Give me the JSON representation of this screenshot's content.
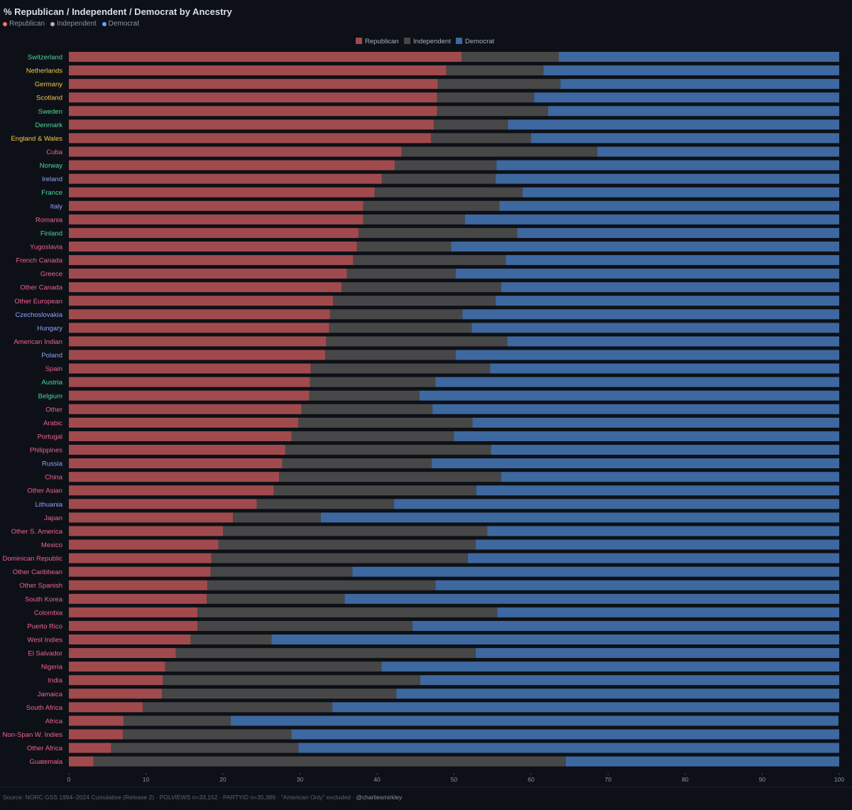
{
  "title": "% Republican / Independent / Democrat by Ancestry",
  "top_legend": [
    {
      "label": "Republican",
      "color": "#ff6b6b"
    },
    {
      "label": "Independent",
      "color": "#b0b0b0"
    },
    {
      "label": "Democrat",
      "color": "#5aa5ff"
    }
  ],
  "footer": {
    "text": "Source: NORC GSS 1994–2024 Cumulative (Release 2) · POLVIEWS n=33,152 · PARTYID n=35,386 · \"American Only\" excluded · ",
    "handle": "@charliesmirkley"
  },
  "colors": {
    "republican": "#a14a4d",
    "independent": "#474747",
    "democrat": "#3e68a0",
    "label_green": "#4fd69a",
    "label_yellow": "#f2c94c",
    "label_pink": "#f06292",
    "label_blue": "#8fa0ff"
  },
  "chart_data": {
    "type": "bar",
    "orientation": "horizontal",
    "stacked": true,
    "xlim": [
      0,
      100
    ],
    "xticks": [
      0,
      10,
      20,
      30,
      40,
      50,
      60,
      70,
      80,
      90,
      100
    ],
    "legend": [
      "Republican",
      "Independent",
      "Democrat"
    ],
    "legend_position": "top-center",
    "grid": false,
    "categories": [
      "Switzerland",
      "Netherlands",
      "Germany",
      "Scotland",
      "Sweden",
      "Denmark",
      "England & Wales",
      "Cuba",
      "Norway",
      "Ireland",
      "France",
      "Italy",
      "Romania",
      "Finland",
      "Yugoslavia",
      "French Canada",
      "Greece",
      "Other Canada",
      "Other European",
      "Czechoslovakia",
      "Hungary",
      "American Indian",
      "Poland",
      "Spain",
      "Austria",
      "Belgium",
      "Other",
      "Arabic",
      "Portugal",
      "Philippines",
      "Russia",
      "China",
      "Other Asian",
      "Lithuania",
      "Japan",
      "Other S. America",
      "Mexico",
      "Dominican Republic",
      "Other Caribbean",
      "Other Spanish",
      "South Korea",
      "Colombia",
      "Puerto Rico",
      "West Indies",
      "El Salvador",
      "Nigeria",
      "India",
      "Jamaica",
      "South Africa",
      "Africa",
      "Non-Span W. Indies",
      "Other Africa",
      "Guatemala"
    ],
    "label_colors": [
      "green",
      "yellow",
      "yellow",
      "yellow",
      "green",
      "green",
      "yellow",
      "pink",
      "green",
      "blue",
      "green",
      "blue",
      "pink",
      "green",
      "pink",
      "pink",
      "pink",
      "pink",
      "pink",
      "blue",
      "blue",
      "pink",
      "blue",
      "pink",
      "green",
      "green",
      "pink",
      "pink",
      "pink",
      "pink",
      "blue",
      "pink",
      "pink",
      "blue",
      "pink",
      "pink",
      "pink",
      "pink",
      "pink",
      "pink",
      "pink",
      "pink",
      "pink",
      "pink",
      "pink",
      "pink",
      "pink",
      "pink",
      "pink",
      "pink",
      "pink",
      "pink",
      "pink"
    ],
    "series": [
      {
        "name": "Republican",
        "values": [
          51,
          49,
          47.9,
          47.8,
          47.8,
          47.4,
          47,
          43.2,
          42.3,
          40.6,
          39.7,
          38.2,
          38.2,
          37.6,
          37.4,
          36.9,
          36.1,
          35.4,
          34.3,
          33.9,
          33.8,
          33.4,
          33.3,
          31.4,
          31.3,
          31.2,
          30.2,
          29.8,
          28.9,
          28.1,
          27.7,
          27.3,
          26.6,
          24.4,
          21.3,
          20,
          19.4,
          18.5,
          18.4,
          18,
          17.9,
          16.7,
          16.7,
          15.8,
          13.9,
          12.5,
          12.2,
          12.1,
          9.6,
          7.1,
          7,
          5.5,
          3.2
        ]
      },
      {
        "name": "Independent",
        "values": [
          12.6,
          12.6,
          15.9,
          12.6,
          14.4,
          9.6,
          13,
          25.4,
          13.2,
          14.8,
          19.2,
          17.7,
          13.2,
          20.6,
          12.2,
          19.8,
          14.1,
          20.7,
          21.1,
          17.2,
          18.5,
          23.5,
          16.9,
          23.3,
          16.3,
          14.3,
          17,
          22.6,
          21.1,
          26.7,
          19.4,
          28.8,
          26.3,
          17.8,
          11.4,
          34.3,
          33.4,
          33.3,
          18.4,
          29.6,
          17.9,
          38.9,
          27.9,
          10.5,
          38.9,
          28.1,
          33.4,
          30.4,
          24.6,
          13.9,
          21.9,
          24.3,
          61.3
        ]
      },
      {
        "name": "Democrat",
        "values": [
          36.4,
          38.4,
          36.2,
          39.6,
          37.8,
          43,
          40,
          31.4,
          44.5,
          44.6,
          41.1,
          44.1,
          48.6,
          41.8,
          50.4,
          43.3,
          49.8,
          43.9,
          44.6,
          48.9,
          47.7,
          43.1,
          49.8,
          45.3,
          52.4,
          54.5,
          52.8,
          47.6,
          50,
          45.2,
          52.9,
          43.9,
          47.1,
          57.8,
          67.3,
          45.7,
          47.2,
          48.2,
          63.2,
          52.4,
          64.2,
          44.4,
          55.4,
          73.7,
          47.2,
          59.4,
          54.4,
          57.5,
          65.8,
          78.9,
          71.1,
          70.2,
          35.5
        ]
      }
    ]
  }
}
